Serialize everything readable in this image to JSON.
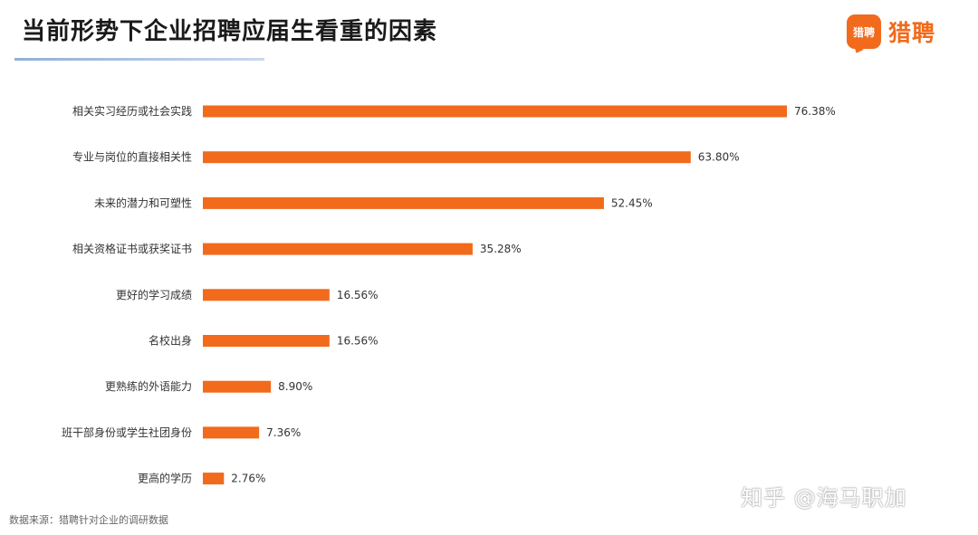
{
  "title": "当前形势下企业招聘应届生看重的因素",
  "brand": {
    "icon_text": "猎聘",
    "name": "猎聘",
    "color": "#f26a1b"
  },
  "source_note": "数据来源：猎聘针对企业的调研数据",
  "watermark": "知乎 @海马职加",
  "chart_data": {
    "type": "bar",
    "orientation": "horizontal",
    "bar_color": "#f26a1b",
    "categories": [
      "相关实习经历或社会实践",
      "专业与岗位的直接相关性",
      "未来的潜力和可塑性",
      "相关资格证书或获奖证书",
      "更好的学习成绩",
      "名校出身",
      "更熟练的外语能力",
      "班干部身份或学生社团身份",
      "更高的学历"
    ],
    "values": [
      76.38,
      63.8,
      52.45,
      35.28,
      16.56,
      16.56,
      8.9,
      7.36,
      2.76
    ],
    "value_labels": [
      "76.38%",
      "63.80%",
      "52.45%",
      "35.28%",
      "16.56%",
      "16.56%",
      "8.90%",
      "7.36%",
      "2.76%"
    ],
    "xlim": [
      0,
      100
    ],
    "grid": false,
    "legend": "none"
  }
}
